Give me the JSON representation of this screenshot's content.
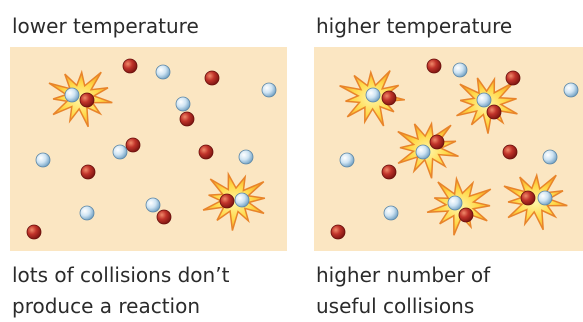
{
  "panels": [
    {
      "title": "lower temperature",
      "caption": [
        "lots of collisions don’t",
        "produce a reaction"
      ]
    },
    {
      "title": "higher temperature",
      "caption": [
        "higher number of",
        "useful collisions"
      ]
    }
  ]
}
